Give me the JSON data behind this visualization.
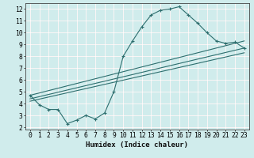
{
  "main_x": [
    0,
    1,
    2,
    3,
    4,
    5,
    6,
    7,
    8,
    9,
    10,
    11,
    12,
    13,
    14,
    15,
    16,
    17,
    18,
    19,
    20,
    21,
    22,
    23
  ],
  "main_y": [
    4.7,
    3.9,
    3.5,
    3.5,
    2.3,
    2.6,
    3.0,
    2.7,
    3.2,
    5.0,
    8.0,
    9.3,
    10.5,
    11.5,
    11.9,
    12.0,
    12.2,
    11.5,
    10.8,
    10.0,
    9.3,
    9.1,
    9.2,
    8.7
  ],
  "line1_x": [
    0,
    23
  ],
  "line1_y": [
    4.7,
    9.3
  ],
  "line2_x": [
    0,
    23
  ],
  "line2_y": [
    4.4,
    8.7
  ],
  "line3_x": [
    0,
    23
  ],
  "line3_y": [
    4.2,
    8.3
  ],
  "color": "#2d6e6e",
  "bg_color": "#d0ecec",
  "red_grid_color": "#e8b8b8",
  "white_grid_color": "#ffffff",
  "xlabel": "Humidex (Indice chaleur)",
  "xlim": [
    -0.5,
    23.5
  ],
  "ylim": [
    1.8,
    12.5
  ],
  "xticks": [
    0,
    1,
    2,
    3,
    4,
    5,
    6,
    7,
    8,
    9,
    10,
    11,
    12,
    13,
    14,
    15,
    16,
    17,
    18,
    19,
    20,
    21,
    22,
    23
  ],
  "yticks": [
    2,
    3,
    4,
    5,
    6,
    7,
    8,
    9,
    10,
    11,
    12
  ],
  "xlabel_fontsize": 6.5,
  "tick_fontsize": 5.8
}
